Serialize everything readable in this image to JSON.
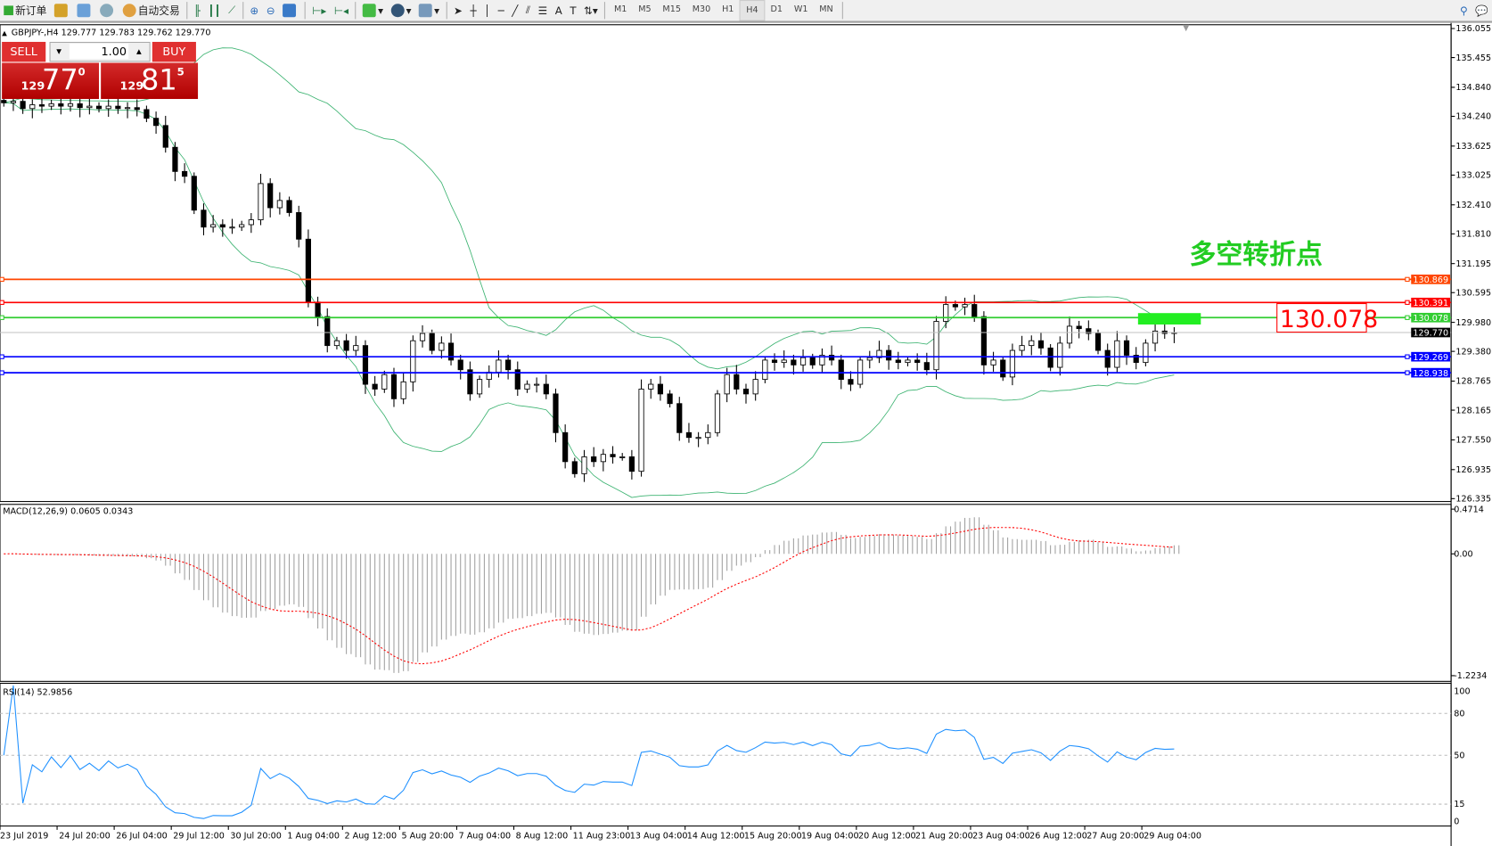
{
  "toolbar": {
    "new_order": "新订单",
    "auto_trading": "自动交易",
    "timeframes": [
      "M1",
      "M5",
      "M15",
      "M30",
      "H1",
      "H4",
      "D1",
      "W1",
      "MN"
    ],
    "active_timeframe": "H4",
    "icons": [
      "new-order-icon",
      "market-watch-icon",
      "navigator-icon",
      "signals-icon",
      "auto-trading-icon",
      "bar-chart-icon",
      "candlestick-icon",
      "line-chart-icon",
      "zoom-in-icon",
      "zoom-out-icon",
      "tile-windows-icon",
      "autoscroll-icon",
      "chart-shift-icon",
      "indicators-icon",
      "periods-icon",
      "templates-icon",
      "cursor-icon",
      "crosshair-icon",
      "vertical-line-icon",
      "horizontal-line-icon",
      "trendline-icon",
      "equidistant-channel-icon",
      "fibonacci-icon",
      "text-icon",
      "text-label-icon",
      "arrows-icon",
      "search-icon",
      "community-icon"
    ]
  },
  "chart": {
    "header": "GBPJPY-,H4  129.777 129.783 129.762 129.770",
    "annotation": "多空转折点",
    "level_box": "130.078",
    "colors": {
      "up_candle": "#ffffff",
      "down_candle": "#000000",
      "bands": "#3cb371",
      "rsi": "#1e90ff",
      "macd_signal": "#ff0000",
      "macd_hist": "#a0a0a0",
      "annotation": "#22cc22"
    }
  },
  "trade_panel": {
    "sell": "SELL",
    "buy": "BUY",
    "lot": "1.00",
    "sell_price": {
      "prefix": "129",
      "big": "77",
      "sup": "0"
    },
    "buy_price": {
      "prefix": "129",
      "big": "81",
      "sup": "5"
    }
  },
  "price_axis": [
    "136.055",
    "135.455",
    "134.840",
    "134.240",
    "133.625",
    "133.025",
    "132.410",
    "131.810",
    "131.195",
    "130.595",
    "129.980",
    "129.380",
    "128.765",
    "128.165",
    "127.550",
    "126.935",
    "126.335"
  ],
  "levels": [
    {
      "price": 130.869,
      "label": "130.869",
      "color": "#ff4500"
    },
    {
      "price": 130.391,
      "label": "130.391",
      "color": "#ff0000"
    },
    {
      "price": 130.078,
      "label": "130.078",
      "color": "#32cd32"
    },
    {
      "price": 129.77,
      "label": "129.770",
      "color": "#000000"
    },
    {
      "price": 129.269,
      "label": "129.269",
      "color": "#0000ff"
    },
    {
      "price": 128.938,
      "label": "128.938",
      "color": "#0000ff"
    }
  ],
  "macd": {
    "label": "MACD(12,26,9) 0.0605 0.0343",
    "axis": [
      "0.4714",
      "0.00",
      "-1.2234"
    ]
  },
  "rsi": {
    "label": "RSI(14) 52.9856",
    "axis": [
      "100",
      "80",
      "50",
      "15",
      "0"
    ]
  },
  "time_axis": [
    "23 Jul 2019",
    "24 Jul 20:00",
    "26 Jul 04:00",
    "29 Jul 12:00",
    "30 Jul 20:00",
    "1 Aug 04:00",
    "2 Aug 12:00",
    "5 Aug 20:00",
    "7 Aug 04:00",
    "8 Aug 12:00",
    "11 Aug 23:00",
    "13 Aug 04:00",
    "14 Aug 12:00",
    "15 Aug 20:00",
    "19 Aug 04:00",
    "20 Aug 12:00",
    "21 Aug 20:00",
    "23 Aug 04:00",
    "26 Aug 12:00",
    "27 Aug 20:00",
    "29 Aug 04:00"
  ],
  "chart_data": {
    "type": "candlestick",
    "symbol": "GBPJPY-",
    "timeframe": "H4",
    "ylim": [
      126.335,
      136.055
    ],
    "closes": [
      134.52,
      134.55,
      134.4,
      134.48,
      134.45,
      134.5,
      134.45,
      134.5,
      134.42,
      134.45,
      134.4,
      134.45,
      134.4,
      134.42,
      134.38,
      134.2,
      134.05,
      133.6,
      133.1,
      133.0,
      132.3,
      131.95,
      132.0,
      131.95,
      131.95,
      132.0,
      132.1,
      132.85,
      132.35,
      132.5,
      132.25,
      131.7,
      130.4,
      130.1,
      129.5,
      129.6,
      129.4,
      129.5,
      128.7,
      128.6,
      128.9,
      128.4,
      128.75,
      129.6,
      129.75,
      129.4,
      129.55,
      129.2,
      129.0,
      128.5,
      128.8,
      128.95,
      129.2,
      129.0,
      128.6,
      128.7,
      128.7,
      128.5,
      127.7,
      127.1,
      126.85,
      127.2,
      127.1,
      127.25,
      127.2,
      127.2,
      126.9,
      128.6,
      128.7,
      128.5,
      128.3,
      127.7,
      127.6,
      127.6,
      127.7,
      128.5,
      128.9,
      128.6,
      128.5,
      128.8,
      129.2,
      129.15,
      129.2,
      129.1,
      129.25,
      129.1,
      129.3,
      129.2,
      128.8,
      128.7,
      129.2,
      129.25,
      129.4,
      129.2,
      129.15,
      129.2,
      129.15,
      129.0,
      130.0,
      130.35,
      130.3,
      130.35,
      130.1,
      129.1,
      129.2,
      128.85,
      129.4,
      129.5,
      129.6,
      129.45,
      129.05,
      129.55,
      129.9,
      129.85,
      129.75,
      129.4,
      129.05,
      129.6,
      129.3,
      129.15,
      129.55,
      129.8,
      129.75,
      129.77
    ]
  }
}
